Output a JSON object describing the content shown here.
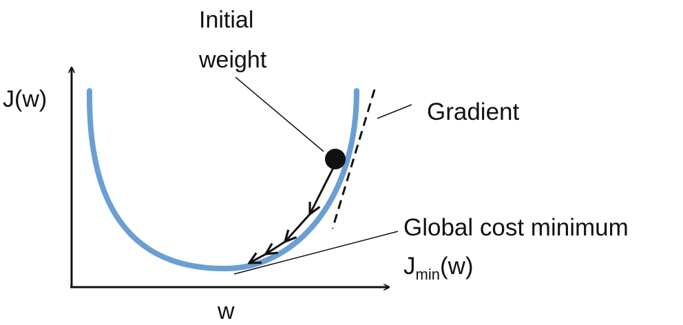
{
  "labels": {
    "initial_weight_line1": "Initial",
    "initial_weight_line2": "weight",
    "gradient": "Gradient",
    "global_min": "Global cost minimum",
    "jmin_base": "J",
    "jmin_sub": "min",
    "jmin_arg": "(w)",
    "y_axis": "J(w)",
    "x_axis": "w"
  },
  "colors": {
    "curve": "#6b9fd3",
    "ink": "#111111"
  }
}
